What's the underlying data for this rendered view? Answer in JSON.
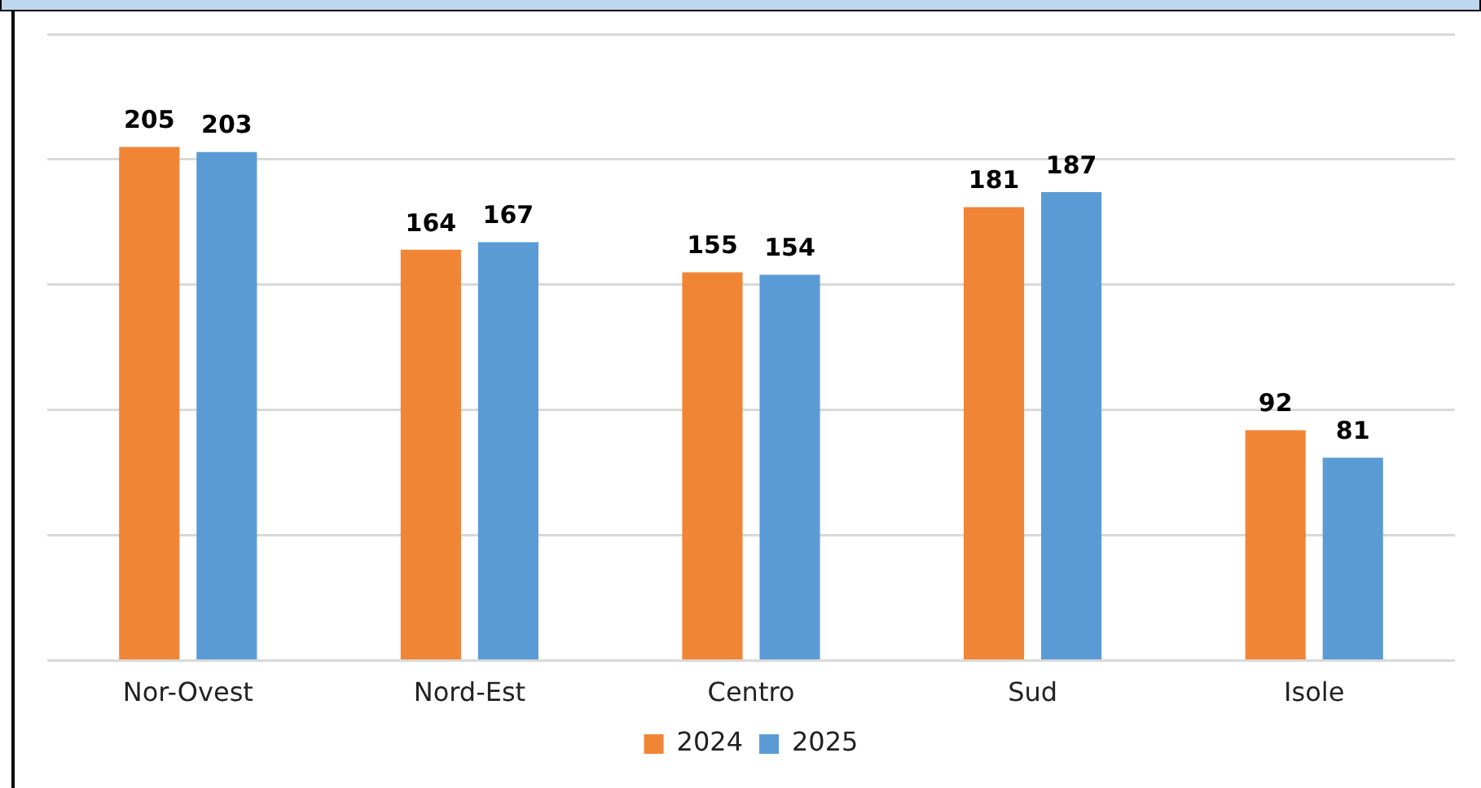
{
  "chart_data": {
    "type": "bar",
    "categories": [
      "Nor-Ovest",
      "Nord-Est",
      "Centro",
      "Sud",
      "Isole"
    ],
    "series": [
      {
        "name": "2024",
        "color": "#f08536",
        "values": [
          205,
          164,
          155,
          181,
          92
        ]
      },
      {
        "name": "2025",
        "color": "#5b9bd5",
        "values": [
          203,
          167,
          154,
          187,
          81
        ]
      }
    ],
    "ylim": [
      0,
      250
    ],
    "yticks": [
      {
        "value": 0,
        "label": null
      },
      {
        "value": 50,
        "label": null
      },
      {
        "value": 100,
        "label": null
      },
      {
        "value": 150,
        "label": null
      },
      {
        "value": 200,
        "label": null
      },
      {
        "value": 250,
        "label": null
      }
    ],
    "tick_labels": "x",
    "grid": "y",
    "legend": "bottom",
    "data_labels": true
  }
}
